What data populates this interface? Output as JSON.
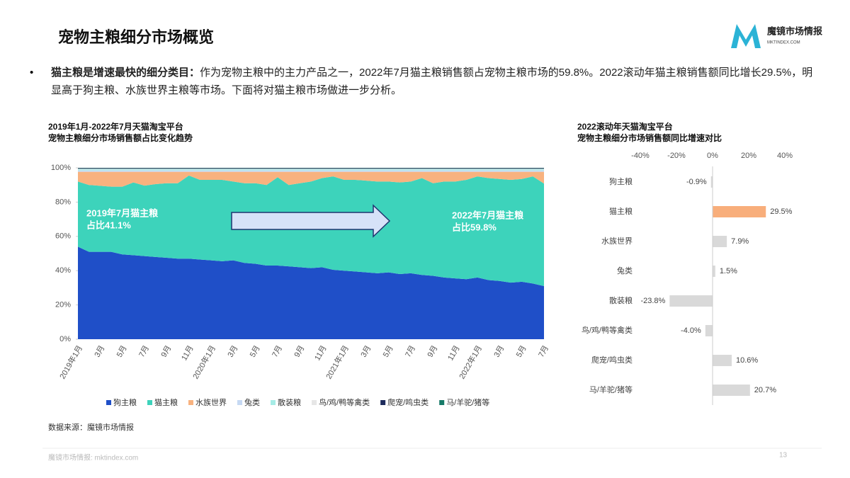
{
  "header": {
    "title": "宠物主粮细分市场概览",
    "logo": "魔镜市场情报",
    "logo_sub": "MKTINDEX.COM"
  },
  "bullet": {
    "bold": "猫主粮是增速最快的细分类目：",
    "text": "作为宠物主粮中的主力产品之一，2022年7月猫主粮销售额占宠物主粮市场的59.8%。2022滚动年猫主粮销售额同比增长29.5%，明显高于狗主粮、水族世界主粮等市场。下面将对猫主粮市场做进一步分析。"
  },
  "source": "数据来源：魔镜市场情报",
  "footer": {
    "text": "魔镜市场情报: mktindex.com",
    "page": "13"
  },
  "chart_data": [
    {
      "type": "stacked_area",
      "title": "2019年1月-2022年7月天猫淘宝平台",
      "subtitle": "宠物主粮细分市场销售额占比变化趋势",
      "categories": [
        "2019年1月",
        null,
        "3月",
        null,
        "5月",
        null,
        "7月",
        null,
        "9月",
        null,
        "11月",
        null,
        "2020年1月",
        null,
        "3月",
        null,
        "5月",
        null,
        "7月",
        null,
        "9月",
        null,
        "11月",
        null,
        "2021年1月",
        null,
        "3月",
        null,
        "5月",
        null,
        "7月",
        null,
        "9月",
        null,
        "11月",
        null,
        "2022年1月",
        null,
        "3月",
        null,
        "5月",
        null,
        "7月"
      ],
      "series": [
        {
          "name": "狗主粮",
          "color": "#1f4fc8",
          "values": [
            54,
            51,
            51,
            51,
            49.5,
            49,
            48.5,
            48,
            47.5,
            47,
            47,
            46.5,
            46,
            45.5,
            46,
            44.5,
            44,
            43,
            43,
            42.5,
            42,
            41.5,
            42,
            40.5,
            40,
            39.5,
            39,
            38.5,
            39,
            38,
            38.5,
            37.5,
            37,
            36,
            35.5,
            35,
            36,
            34.5,
            34,
            33,
            33.5,
            32.5,
            31
          ]
        },
        {
          "name": "猫主粮",
          "color": "#3dd3bb",
          "values": [
            38,
            39,
            38.5,
            38,
            39.5,
            42.5,
            41.1,
            42.5,
            43.5,
            44,
            48.5,
            46.5,
            47,
            47.5,
            46,
            46.5,
            47,
            47,
            51.5,
            47.5,
            49,
            50.5,
            52,
            54.5,
            53,
            53.5,
            53.5,
            53.5,
            53,
            53.5,
            53.5,
            56.5,
            54,
            56,
            56.5,
            58,
            59,
            59.5,
            59.5,
            60,
            60,
            62.5,
            59.8
          ]
        },
        {
          "name": "水族世界",
          "color": "#f8b27f",
          "values": [
            5.7,
            7.7,
            8.2,
            8.7,
            8.7,
            6.2,
            8.1,
            7.2,
            6.7,
            6.7,
            2.2,
            4.7,
            4.7,
            4.7,
            5.7,
            6.7,
            6.7,
            7.7,
            3.2,
            7.7,
            6.7,
            5.7,
            3.7,
            2.7,
            4.7,
            4.7,
            5.2,
            5.7,
            5.7,
            6.2,
            5.7,
            3.7,
            6.7,
            5.7,
            5.7,
            4.7,
            2.7,
            3.7,
            4.2,
            4.7,
            4.2,
            2.7,
            6.9
          ]
        },
        {
          "name": "兔类",
          "color": "#c6d9f3",
          "values": [
            0.8,
            0.8,
            0.8,
            0.8,
            0.8,
            0.8,
            0.8,
            0.8,
            0.8,
            0.8,
            0.8,
            0.8,
            0.8,
            0.8,
            0.8,
            0.8,
            0.8,
            0.8,
            0.8,
            0.8,
            0.8,
            0.8,
            0.8,
            0.8,
            0.8,
            0.8,
            0.8,
            0.8,
            0.8,
            0.8,
            0.8,
            0.8,
            0.8,
            0.8,
            0.8,
            0.8,
            0.8,
            0.8,
            0.8,
            0.8,
            0.8,
            0.8,
            0.8
          ]
        },
        {
          "name": "散装粮",
          "color": "#a6ece6",
          "values": [
            0.6,
            0.6,
            0.6,
            0.6,
            0.6,
            0.6,
            0.6,
            0.6,
            0.6,
            0.6,
            0.6,
            0.6,
            0.6,
            0.6,
            0.6,
            0.6,
            0.6,
            0.6,
            0.6,
            0.6,
            0.6,
            0.6,
            0.6,
            0.6,
            0.6,
            0.6,
            0.6,
            0.6,
            0.6,
            0.6,
            0.6,
            0.6,
            0.6,
            0.6,
            0.6,
            0.6,
            0.6,
            0.6,
            0.6,
            0.6,
            0.6,
            0.6,
            0.6
          ]
        },
        {
          "name": "鸟/鸡/鸭等禽类",
          "color": "#e6e6e6",
          "values": [
            0.4,
            0.4,
            0.4,
            0.4,
            0.4,
            0.4,
            0.4,
            0.4,
            0.4,
            0.4,
            0.4,
            0.4,
            0.4,
            0.4,
            0.4,
            0.4,
            0.4,
            0.4,
            0.4,
            0.4,
            0.4,
            0.4,
            0.4,
            0.4,
            0.4,
            0.4,
            0.4,
            0.4,
            0.4,
            0.4,
            0.4,
            0.4,
            0.4,
            0.4,
            0.4,
            0.4,
            0.4,
            0.4,
            0.4,
            0.4,
            0.4,
            0.4,
            0.4
          ]
        },
        {
          "name": "爬宠/鸣虫类",
          "color": "#1d2b5c",
          "values": [
            0.3,
            0.3,
            0.3,
            0.3,
            0.3,
            0.3,
            0.3,
            0.3,
            0.3,
            0.3,
            0.3,
            0.3,
            0.3,
            0.3,
            0.3,
            0.3,
            0.3,
            0.3,
            0.3,
            0.3,
            0.3,
            0.3,
            0.3,
            0.3,
            0.3,
            0.3,
            0.3,
            0.3,
            0.3,
            0.3,
            0.3,
            0.3,
            0.3,
            0.3,
            0.3,
            0.3,
            0.3,
            0.3,
            0.3,
            0.3,
            0.3,
            0.3,
            0.3
          ]
        },
        {
          "name": "马/羊驼/猪等",
          "color": "#177a68",
          "values": [
            0.2,
            0.2,
            0.2,
            0.2,
            0.2,
            0.2,
            0.2,
            0.2,
            0.2,
            0.2,
            0.2,
            0.2,
            0.2,
            0.2,
            0.2,
            0.2,
            0.2,
            0.2,
            0.2,
            0.2,
            0.2,
            0.2,
            0.2,
            0.2,
            0.2,
            0.2,
            0.2,
            0.2,
            0.2,
            0.2,
            0.2,
            0.2,
            0.2,
            0.2,
            0.2,
            0.2,
            0.2,
            0.2,
            0.2,
            0.2,
            0.2,
            0.2,
            0.2
          ]
        }
      ],
      "ylim": [
        0,
        100
      ],
      "yticks": [
        {
          "value": 0,
          "label": "0%"
        },
        {
          "value": 20,
          "label": "20%"
        },
        {
          "value": 40,
          "label": "40%"
        },
        {
          "value": 60,
          "label": "60%"
        },
        {
          "value": 80,
          "label": "80%"
        },
        {
          "value": 100,
          "label": "100%"
        }
      ],
      "annotations": [
        {
          "lines": [
            "2019年7月猫主粮",
            "占比41.1%"
          ]
        },
        {
          "lines": [
            "2022年7月猫主粮",
            "占比59.8%"
          ]
        }
      ],
      "legend": "bottom"
    },
    {
      "type": "hbar",
      "title": "2022滚动年天猫淘宝平台",
      "subtitle": "宠物主粮细分市场销售额同比增速对比",
      "categories": [
        "狗主粮",
        "猫主粮",
        "水族世界",
        "兔类",
        "散装粮",
        "鸟/鸡/鸭等禽类",
        "爬宠/鸣虫类",
        "马/羊驼/猪等"
      ],
      "values": [
        -0.9,
        29.5,
        7.9,
        1.5,
        -23.8,
        -4.0,
        10.6,
        20.7
      ],
      "value_labels": [
        "-0.9%",
        "29.5%",
        "7.9%",
        "1.5%",
        "-23.8%",
        "-4.0%",
        "10.6%",
        "20.7%"
      ],
      "colors": [
        "#d9d9d9",
        "#f8ae7b",
        "#d9d9d9",
        "#d9d9d9",
        "#d9d9d9",
        "#d9d9d9",
        "#d9d9d9",
        "#d9d9d9"
      ],
      "xlim": [
        -40,
        40
      ],
      "xticks": [
        {
          "value": -40,
          "label": "-40%"
        },
        {
          "value": -20,
          "label": "-20%"
        },
        {
          "value": 0,
          "label": "0%"
        },
        {
          "value": 20,
          "label": "20%"
        },
        {
          "value": 40,
          "label": "40%"
        }
      ]
    }
  ]
}
